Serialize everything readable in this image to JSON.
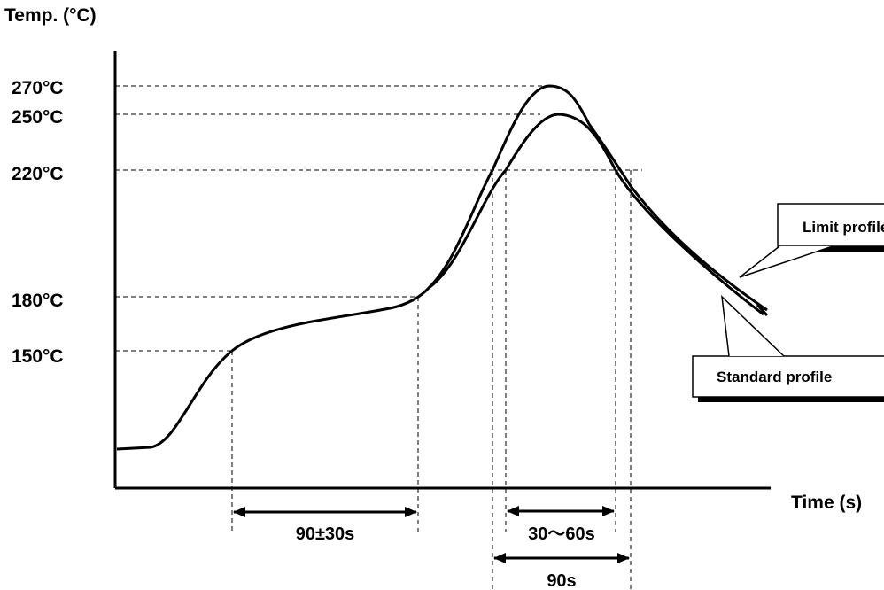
{
  "chart_data": {
    "type": "line",
    "title": "",
    "ylabel": "Temp. (°C)",
    "xlabel": "Time (s)",
    "yticks": [
      {
        "value": 270,
        "label": "270°C"
      },
      {
        "value": 250,
        "label": "250°C"
      },
      {
        "value": 220,
        "label": "220°C"
      },
      {
        "value": 180,
        "label": "180°C"
      },
      {
        "value": 150,
        "label": "150°C"
      }
    ],
    "series": [
      {
        "name": "Standard profile",
        "peak": 250,
        "x": [
          0,
          10,
          20,
          35,
          50,
          65,
          90,
          120,
          150,
          170,
          185,
          200,
          210,
          220,
          235,
          250,
          265,
          280,
          300
        ],
        "y": [
          123,
          124,
          132,
          150,
          159,
          164,
          171,
          180,
          205,
          230,
          245,
          250,
          248,
          235,
          212,
          198,
          186,
          176,
          162
        ]
      },
      {
        "name": "Limit profile",
        "peak": 270,
        "x": [
          0,
          10,
          20,
          35,
          50,
          65,
          90,
          120,
          150,
          170,
          185,
          200,
          210,
          220,
          235,
          250,
          265,
          280,
          300
        ],
        "y": [
          123,
          124,
          132,
          150,
          159,
          164,
          171,
          180,
          210,
          245,
          265,
          270,
          265,
          245,
          215,
          200,
          188,
          178,
          165
        ]
      }
    ],
    "annotations": {
      "preheat": "90±30s",
      "above_220": "30～60s",
      "total": "90s",
      "limit_label": "Limit profile",
      "standard_label": "Standard profile"
    },
    "grid": false,
    "reference_lines": "dashed"
  }
}
